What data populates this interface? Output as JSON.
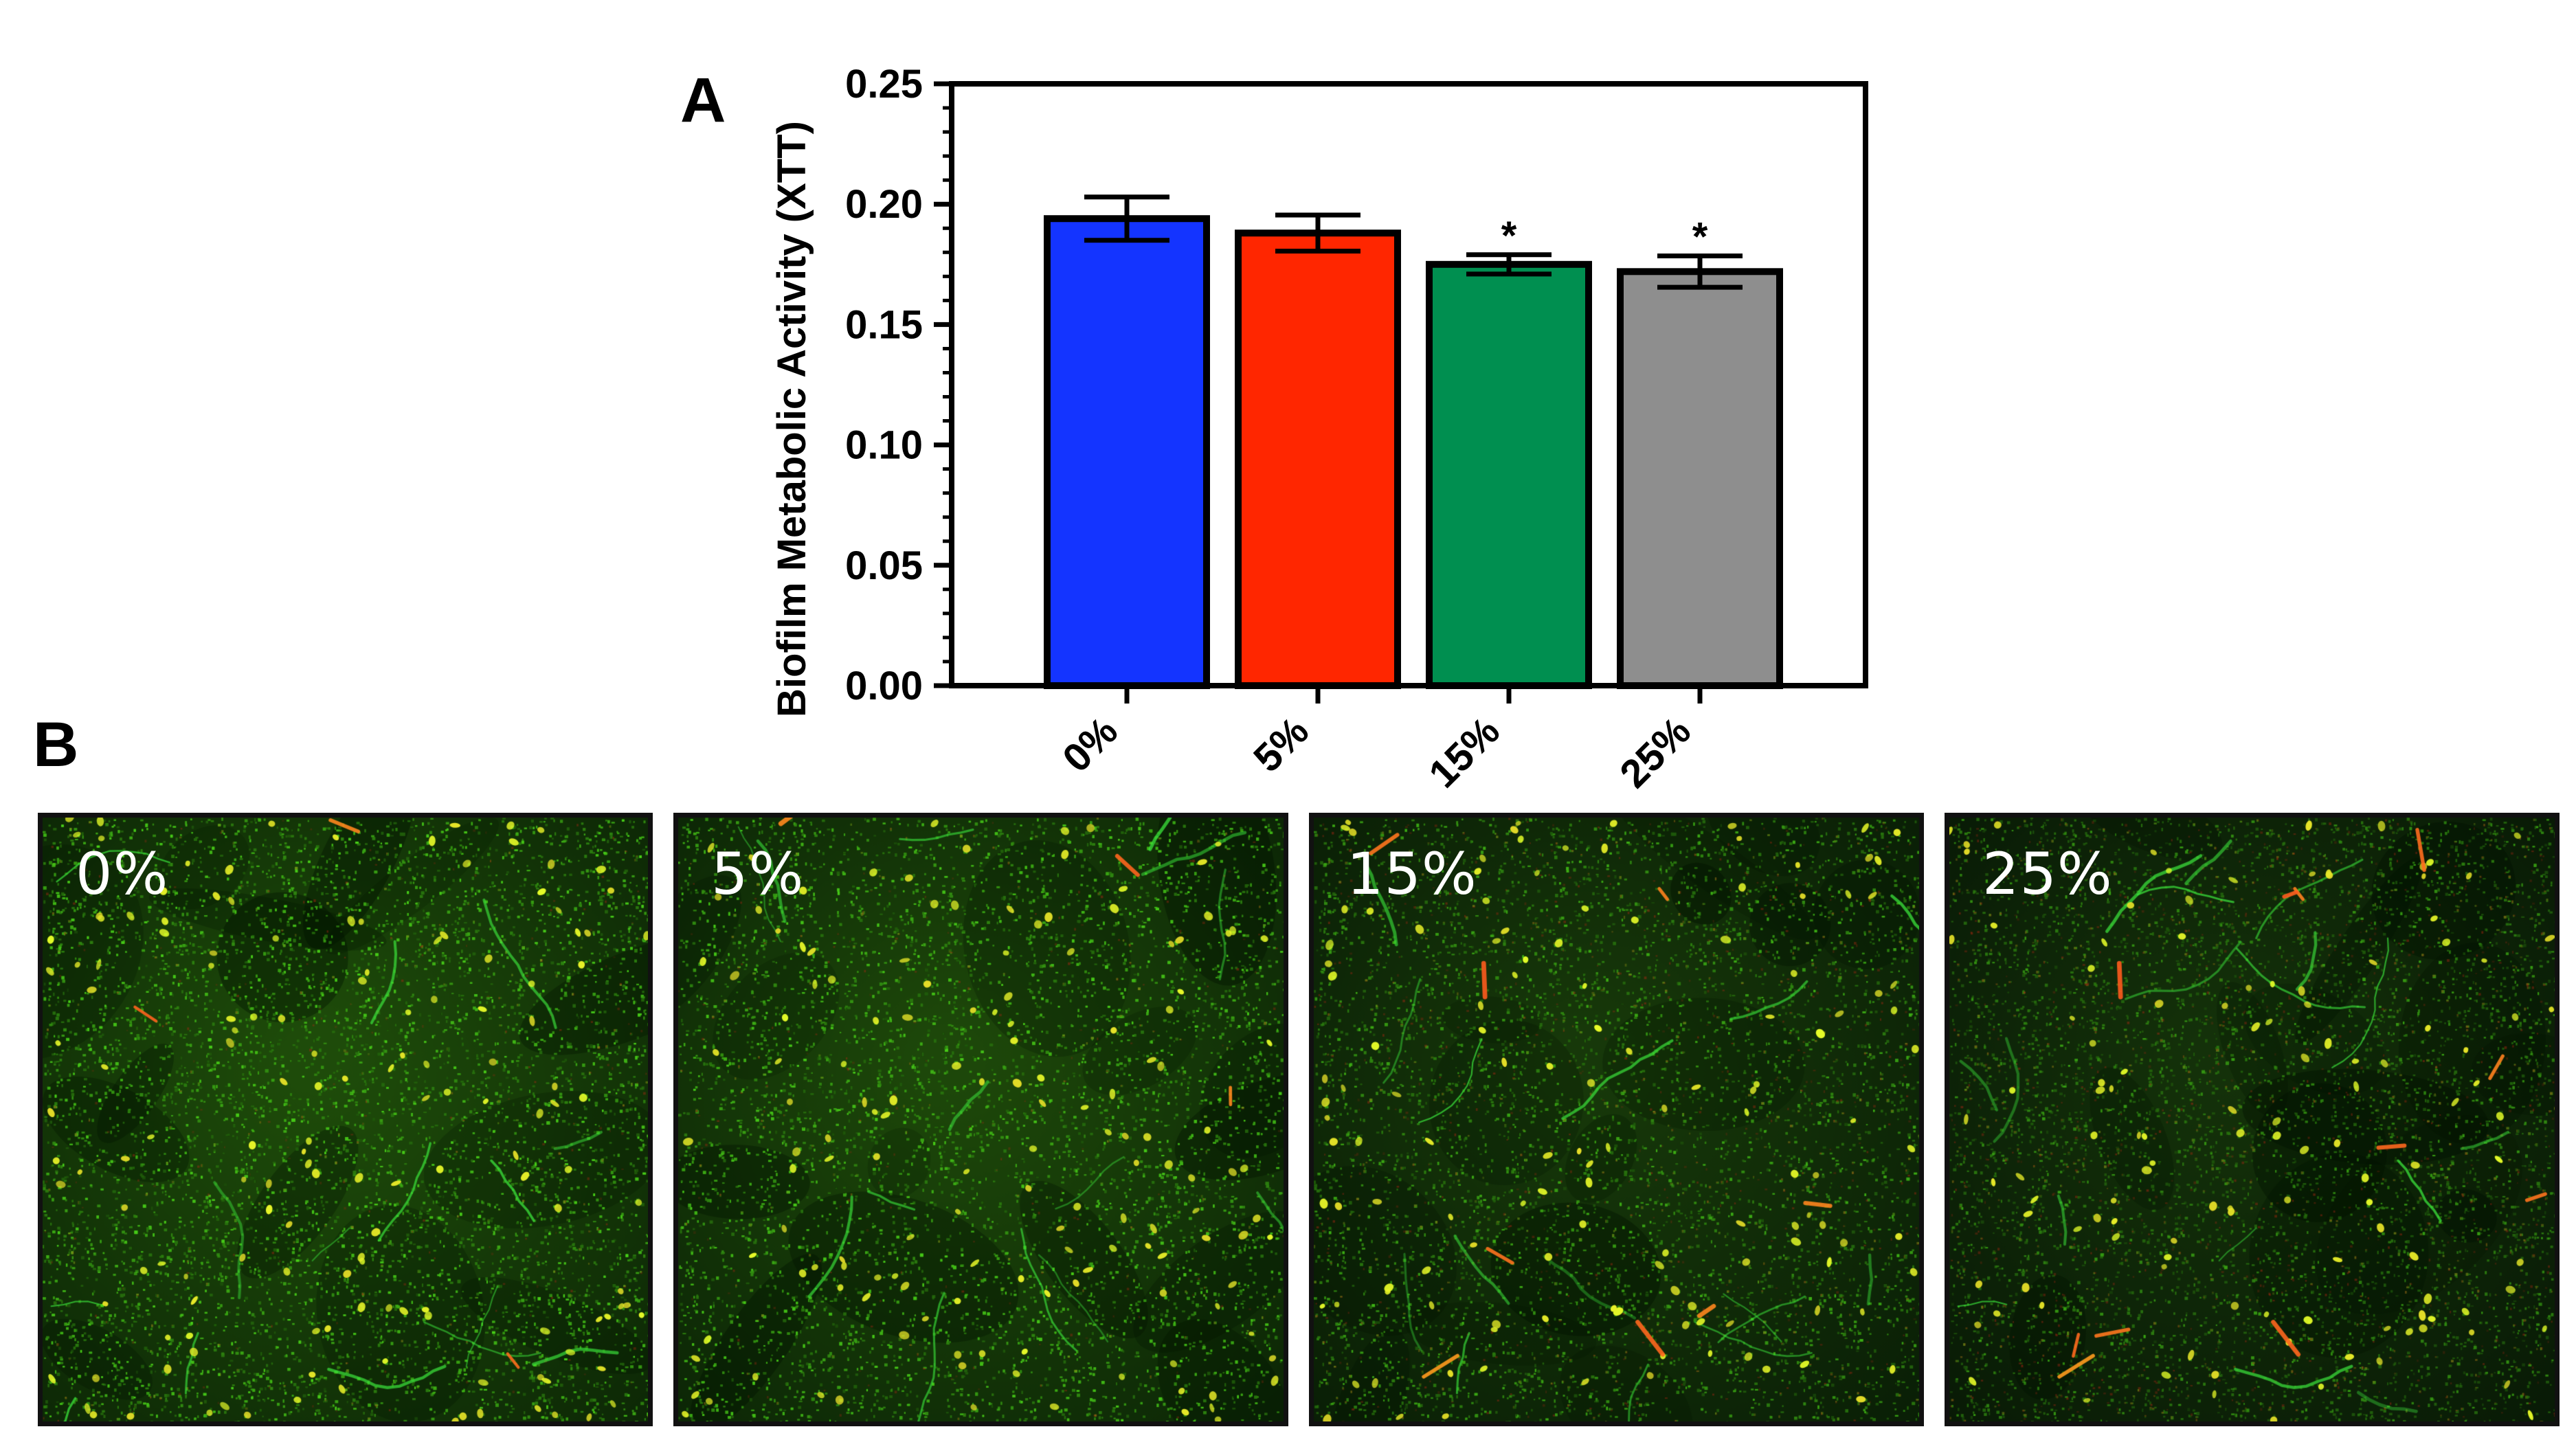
{
  "figure": {
    "panel_a_letter": "A",
    "panel_b_letter": "B"
  },
  "chart_data": {
    "type": "bar",
    "title": "",
    "xlabel": "",
    "ylabel": "Biofilm Metabolic Activity (XTT)",
    "categories": [
      "0%",
      "5%",
      "15%",
      "25%"
    ],
    "values": [
      0.194,
      0.188,
      0.175,
      0.172
    ],
    "error": [
      0.009,
      0.0075,
      0.004,
      0.0065
    ],
    "significance": [
      "",
      "",
      "*",
      "*"
    ],
    "colors": [
      "#1434ff",
      "#ff2600",
      "#008f50",
      "#8e8e8e"
    ],
    "ylim": [
      0,
      0.25
    ],
    "yticks": [
      "0.00",
      "0.05",
      "0.10",
      "0.15",
      "0.20",
      "0.25"
    ],
    "grid": false,
    "legend": "none"
  },
  "micrographs": [
    {
      "label": "0%",
      "density": 1.0,
      "red": 0.15,
      "brightness": 1.0
    },
    {
      "label": "5%",
      "density": 0.95,
      "red": 0.12,
      "brightness": 0.95
    },
    {
      "label": "15%",
      "density": 0.7,
      "red": 0.35,
      "brightness": 0.75
    },
    {
      "label": "25%",
      "density": 0.55,
      "red": 0.5,
      "brightness": 0.65
    }
  ]
}
